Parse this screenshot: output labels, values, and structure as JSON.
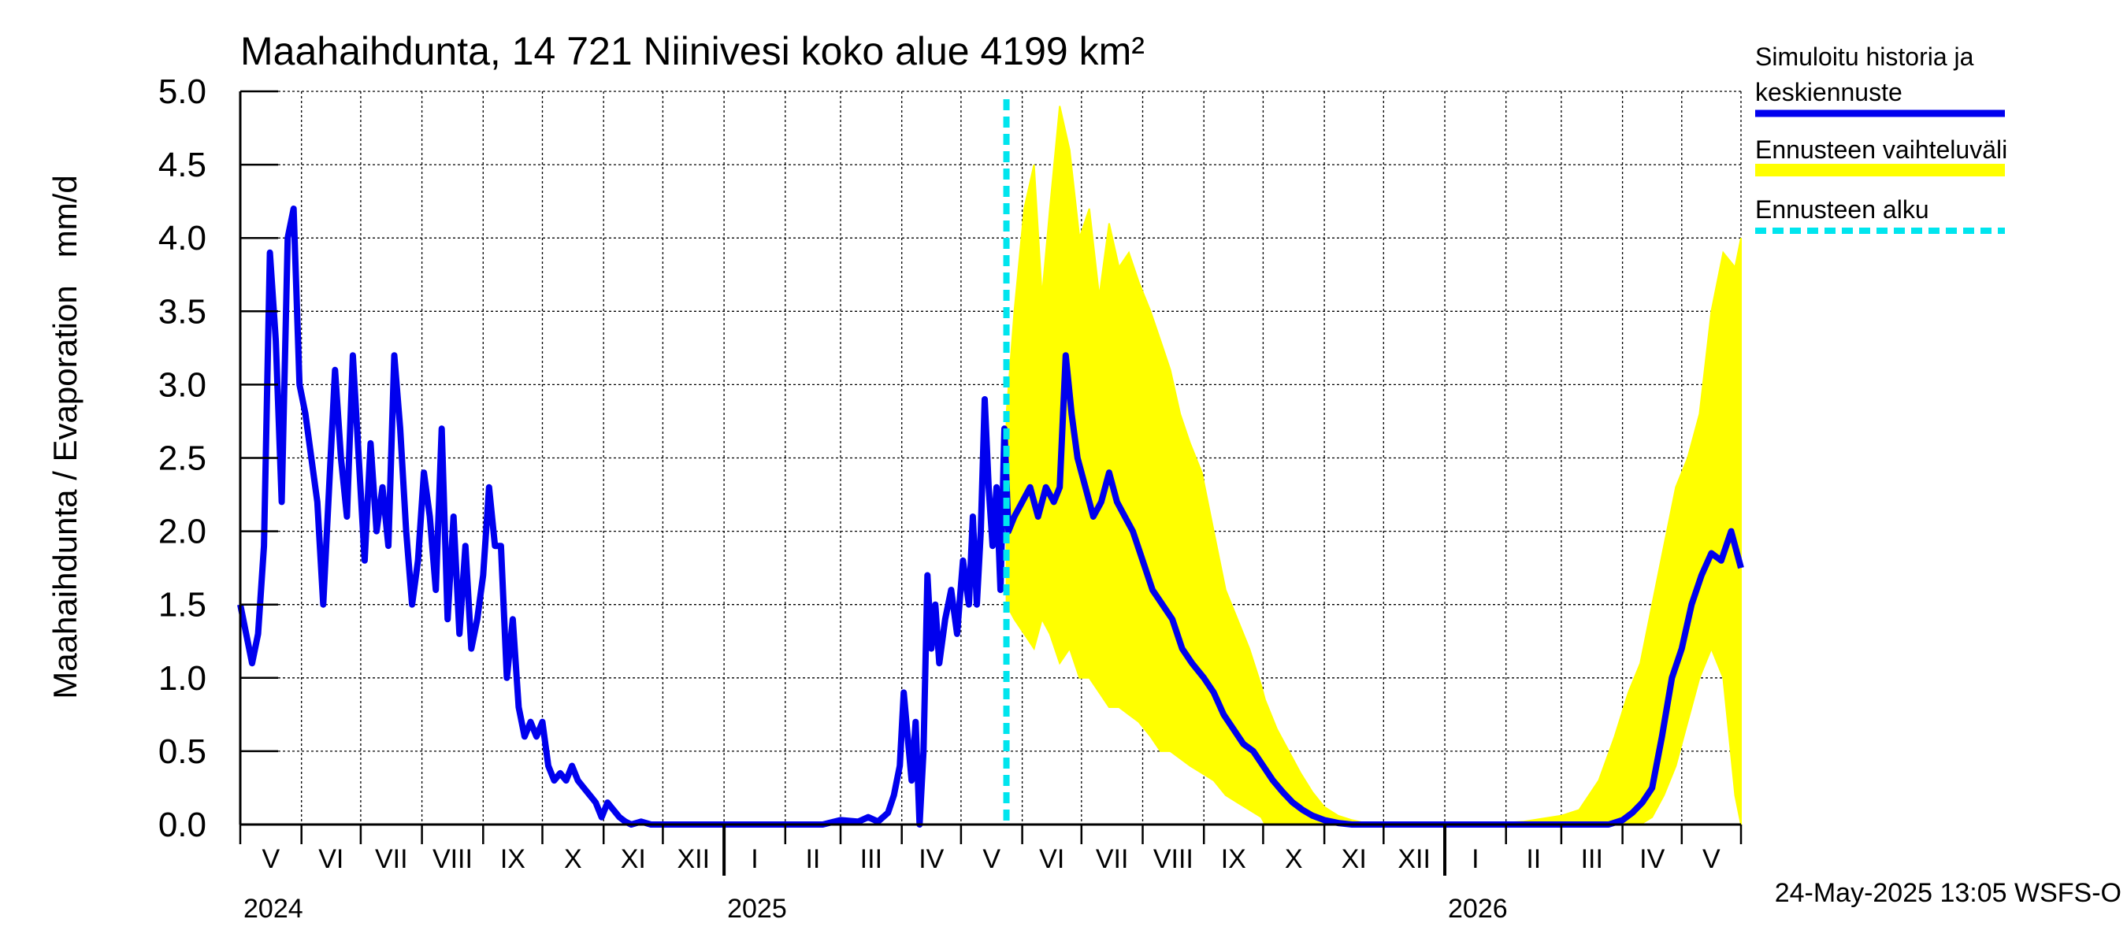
{
  "chart_data": {
    "type": "area",
    "title": "Maahaihdunta, 14 721 Niinivesi koko alue 4199 km²",
    "ylabel": "Maahaihdunta / Evaporation   mm/d",
    "ylim": [
      0.0,
      5.0
    ],
    "yticks": [
      "0.0",
      "0.5",
      "1.0",
      "1.5",
      "2.0",
      "2.5",
      "3.0",
      "3.5",
      "4.0",
      "4.5",
      "5.0"
    ],
    "grid": true,
    "legend_position": "right",
    "x_range": [
      "2024-05-01",
      "2026-05-31"
    ],
    "month_labels": [
      "V",
      "VI",
      "VII",
      "VIII",
      "IX",
      "X",
      "XI",
      "XII",
      "I",
      "II",
      "III",
      "IV",
      "V",
      "VI",
      "VII",
      "VIII",
      "IX",
      "X",
      "XI",
      "XII",
      "I",
      "II",
      "III",
      "IV",
      "V"
    ],
    "year_labels": [
      {
        "label": "2024",
        "date": "2024-05-01"
      },
      {
        "label": "2025",
        "date": "2025-01-01"
      },
      {
        "label": "2026",
        "date": "2026-01-01"
      }
    ],
    "forecast_start": "2025-05-24",
    "footer": "24-May-2025 13:05 WSFS-O",
    "legend": [
      {
        "label_line1": "Simuloitu historia ja",
        "label_line2": "keskiennuste",
        "color": "#0000ee",
        "style": "solid"
      },
      {
        "label_line1": "Ennusteen vaihteluväli",
        "label_line2": "",
        "color": "#ffff00",
        "style": "band"
      },
      {
        "label_line1": "Ennusteen alku",
        "label_line2": "",
        "color": "#00e5ee",
        "style": "dashed"
      }
    ],
    "series": [
      {
        "name": "Simuloitu historia ja keskiennuste",
        "color": "#0000ee",
        "points": [
          [
            "2024-05-01",
            1.5
          ],
          [
            "2024-05-04",
            1.3
          ],
          [
            "2024-05-07",
            1.1
          ],
          [
            "2024-05-10",
            1.3
          ],
          [
            "2024-05-13",
            1.9
          ],
          [
            "2024-05-16",
            3.9
          ],
          [
            "2024-05-19",
            3.3
          ],
          [
            "2024-05-22",
            2.2
          ],
          [
            "2024-05-25",
            4.0
          ],
          [
            "2024-05-28",
            4.2
          ],
          [
            "2024-05-31",
            3.0
          ],
          [
            "2024-06-03",
            2.8
          ],
          [
            "2024-06-06",
            2.5
          ],
          [
            "2024-06-09",
            2.2
          ],
          [
            "2024-06-12",
            1.5
          ],
          [
            "2024-06-15",
            2.3
          ],
          [
            "2024-06-18",
            3.1
          ],
          [
            "2024-06-21",
            2.5
          ],
          [
            "2024-06-24",
            2.1
          ],
          [
            "2024-06-27",
            3.2
          ],
          [
            "2024-06-30",
            2.5
          ],
          [
            "2024-07-03",
            1.8
          ],
          [
            "2024-07-06",
            2.6
          ],
          [
            "2024-07-09",
            2.0
          ],
          [
            "2024-07-12",
            2.3
          ],
          [
            "2024-07-15",
            1.9
          ],
          [
            "2024-07-18",
            3.2
          ],
          [
            "2024-07-21",
            2.7
          ],
          [
            "2024-07-24",
            2.0
          ],
          [
            "2024-07-27",
            1.5
          ],
          [
            "2024-07-30",
            1.8
          ],
          [
            "2024-08-02",
            2.4
          ],
          [
            "2024-08-05",
            2.1
          ],
          [
            "2024-08-08",
            1.6
          ],
          [
            "2024-08-11",
            2.7
          ],
          [
            "2024-08-14",
            1.4
          ],
          [
            "2024-08-17",
            2.1
          ],
          [
            "2024-08-20",
            1.3
          ],
          [
            "2024-08-23",
            1.9
          ],
          [
            "2024-08-26",
            1.2
          ],
          [
            "2024-08-29",
            1.4
          ],
          [
            "2024-09-01",
            1.7
          ],
          [
            "2024-09-04",
            2.3
          ],
          [
            "2024-09-07",
            1.9
          ],
          [
            "2024-09-10",
            1.9
          ],
          [
            "2024-09-13",
            1.0
          ],
          [
            "2024-09-16",
            1.4
          ],
          [
            "2024-09-19",
            0.8
          ],
          [
            "2024-09-22",
            0.6
          ],
          [
            "2024-09-25",
            0.7
          ],
          [
            "2024-09-28",
            0.6
          ],
          [
            "2024-10-01",
            0.7
          ],
          [
            "2024-10-04",
            0.4
          ],
          [
            "2024-10-07",
            0.3
          ],
          [
            "2024-10-10",
            0.35
          ],
          [
            "2024-10-13",
            0.3
          ],
          [
            "2024-10-16",
            0.4
          ],
          [
            "2024-10-19",
            0.3
          ],
          [
            "2024-10-22",
            0.25
          ],
          [
            "2024-10-25",
            0.2
          ],
          [
            "2024-10-28",
            0.15
          ],
          [
            "2024-10-31",
            0.05
          ],
          [
            "2024-11-03",
            0.15
          ],
          [
            "2024-11-06",
            0.1
          ],
          [
            "2024-11-09",
            0.05
          ],
          [
            "2024-11-12",
            0.02
          ],
          [
            "2024-11-15",
            0.0
          ],
          [
            "2024-11-20",
            0.02
          ],
          [
            "2024-11-25",
            0.0
          ],
          [
            "2024-12-05",
            0.0
          ],
          [
            "2024-12-20",
            0.0
          ],
          [
            "2025-01-05",
            0.0
          ],
          [
            "2025-01-20",
            0.0
          ],
          [
            "2025-02-05",
            0.0
          ],
          [
            "2025-02-20",
            0.0
          ],
          [
            "2025-03-01",
            0.03
          ],
          [
            "2025-03-10",
            0.02
          ],
          [
            "2025-03-15",
            0.05
          ],
          [
            "2025-03-20",
            0.02
          ],
          [
            "2025-03-25",
            0.08
          ],
          [
            "2025-03-28",
            0.2
          ],
          [
            "2025-03-31",
            0.4
          ],
          [
            "2025-04-02",
            0.9
          ],
          [
            "2025-04-04",
            0.6
          ],
          [
            "2025-04-06",
            0.3
          ],
          [
            "2025-04-08",
            0.7
          ],
          [
            "2025-04-10",
            0.0
          ],
          [
            "2025-04-12",
            0.5
          ],
          [
            "2025-04-14",
            1.7
          ],
          [
            "2025-04-16",
            1.2
          ],
          [
            "2025-04-18",
            1.5
          ],
          [
            "2025-04-20",
            1.1
          ],
          [
            "2025-04-23",
            1.4
          ],
          [
            "2025-04-26",
            1.6
          ],
          [
            "2025-04-29",
            1.3
          ],
          [
            "2025-05-02",
            1.8
          ],
          [
            "2025-05-05",
            1.5
          ],
          [
            "2025-05-07",
            2.1
          ],
          [
            "2025-05-09",
            1.5
          ],
          [
            "2025-05-11",
            2.0
          ],
          [
            "2025-05-13",
            2.9
          ],
          [
            "2025-05-15",
            2.3
          ],
          [
            "2025-05-17",
            1.9
          ],
          [
            "2025-05-19",
            2.3
          ],
          [
            "2025-05-21",
            1.6
          ],
          [
            "2025-05-23",
            2.7
          ],
          [
            "2025-05-25",
            2.0
          ],
          [
            "2025-05-28",
            2.1
          ],
          [
            "2025-06-01",
            2.2
          ],
          [
            "2025-06-05",
            2.3
          ],
          [
            "2025-06-09",
            2.1
          ],
          [
            "2025-06-13",
            2.3
          ],
          [
            "2025-06-17",
            2.2
          ],
          [
            "2025-06-20",
            2.3
          ],
          [
            "2025-06-23",
            3.2
          ],
          [
            "2025-06-26",
            2.8
          ],
          [
            "2025-06-29",
            2.5
          ],
          [
            "2025-07-03",
            2.3
          ],
          [
            "2025-07-07",
            2.1
          ],
          [
            "2025-07-11",
            2.2
          ],
          [
            "2025-07-15",
            2.4
          ],
          [
            "2025-07-19",
            2.2
          ],
          [
            "2025-07-23",
            2.1
          ],
          [
            "2025-07-27",
            2.0
          ],
          [
            "2025-08-01",
            1.8
          ],
          [
            "2025-08-06",
            1.6
          ],
          [
            "2025-08-11",
            1.5
          ],
          [
            "2025-08-16",
            1.4
          ],
          [
            "2025-08-21",
            1.2
          ],
          [
            "2025-08-26",
            1.1
          ],
          [
            "2025-09-01",
            1.0
          ],
          [
            "2025-09-06",
            0.9
          ],
          [
            "2025-09-11",
            0.75
          ],
          [
            "2025-09-16",
            0.65
          ],
          [
            "2025-09-21",
            0.55
          ],
          [
            "2025-09-26",
            0.5
          ],
          [
            "2025-10-01",
            0.4
          ],
          [
            "2025-10-06",
            0.3
          ],
          [
            "2025-10-11",
            0.22
          ],
          [
            "2025-10-16",
            0.15
          ],
          [
            "2025-10-21",
            0.1
          ],
          [
            "2025-10-26",
            0.06
          ],
          [
            "2025-11-01",
            0.03
          ],
          [
            "2025-11-08",
            0.01
          ],
          [
            "2025-11-15",
            0.0
          ],
          [
            "2025-12-15",
            0.0
          ],
          [
            "2026-01-15",
            0.0
          ],
          [
            "2026-02-15",
            0.0
          ],
          [
            "2026-03-10",
            0.0
          ],
          [
            "2026-03-25",
            0.0
          ],
          [
            "2026-04-01",
            0.03
          ],
          [
            "2026-04-06",
            0.08
          ],
          [
            "2026-04-11",
            0.15
          ],
          [
            "2026-04-16",
            0.25
          ],
          [
            "2026-04-21",
            0.6
          ],
          [
            "2026-04-26",
            1.0
          ],
          [
            "2026-05-01",
            1.2
          ],
          [
            "2026-05-06",
            1.5
          ],
          [
            "2026-05-11",
            1.7
          ],
          [
            "2026-05-16",
            1.85
          ],
          [
            "2026-05-21",
            1.8
          ],
          [
            "2026-05-26",
            2.0
          ],
          [
            "2026-05-31",
            1.75
          ]
        ]
      },
      {
        "name": "Ennusteen vaihteluväli",
        "color": "#ffff00",
        "band": [
          [
            "2025-05-24",
            1.5,
            2.8
          ],
          [
            "2025-05-28",
            1.4,
            3.5
          ],
          [
            "2025-06-02",
            1.3,
            4.2
          ],
          [
            "2025-06-07",
            1.2,
            4.5
          ],
          [
            "2025-06-11",
            1.4,
            3.6
          ],
          [
            "2025-06-15",
            1.3,
            4.2
          ],
          [
            "2025-06-20",
            1.1,
            4.9
          ],
          [
            "2025-06-25",
            1.2,
            4.6
          ],
          [
            "2025-06-30",
            1.0,
            4.0
          ],
          [
            "2025-07-05",
            1.0,
            4.2
          ],
          [
            "2025-07-10",
            0.9,
            3.6
          ],
          [
            "2025-07-15",
            0.8,
            4.1
          ],
          [
            "2025-07-20",
            0.8,
            3.8
          ],
          [
            "2025-07-25",
            0.75,
            3.9
          ],
          [
            "2025-07-30",
            0.7,
            3.7
          ],
          [
            "2025-08-05",
            0.6,
            3.5
          ],
          [
            "2025-08-10",
            0.5,
            3.3
          ],
          [
            "2025-08-15",
            0.5,
            3.1
          ],
          [
            "2025-08-20",
            0.45,
            2.8
          ],
          [
            "2025-08-25",
            0.4,
            2.6
          ],
          [
            "2025-08-31",
            0.35,
            2.4
          ],
          [
            "2025-09-06",
            0.3,
            2.0
          ],
          [
            "2025-09-12",
            0.2,
            1.6
          ],
          [
            "2025-09-18",
            0.15,
            1.4
          ],
          [
            "2025-09-24",
            0.1,
            1.2
          ],
          [
            "2025-09-30",
            0.05,
            0.95
          ],
          [
            "2025-10-02",
            0.0,
            0.85
          ],
          [
            "2025-10-08",
            0.0,
            0.65
          ],
          [
            "2025-10-14",
            0.0,
            0.5
          ],
          [
            "2025-10-20",
            0.0,
            0.35
          ],
          [
            "2025-10-26",
            0.0,
            0.22
          ],
          [
            "2025-11-01",
            0.0,
            0.12
          ],
          [
            "2025-11-08",
            0.0,
            0.06
          ],
          [
            "2025-11-15",
            0.0,
            0.03
          ],
          [
            "2025-11-25",
            0.0,
            0.0
          ],
          [
            "2026-01-15",
            0.0,
            0.0
          ],
          [
            "2026-02-10",
            0.0,
            0.02
          ],
          [
            "2026-03-01",
            0.0,
            0.06
          ],
          [
            "2026-03-10",
            0.0,
            0.1
          ],
          [
            "2026-03-20",
            0.0,
            0.3
          ],
          [
            "2026-03-28",
            0.0,
            0.6
          ],
          [
            "2026-04-04",
            0.0,
            0.9
          ],
          [
            "2026-04-10",
            0.0,
            1.1
          ],
          [
            "2026-04-16",
            0.05,
            1.5
          ],
          [
            "2026-04-22",
            0.2,
            1.9
          ],
          [
            "2026-04-28",
            0.4,
            2.3
          ],
          [
            "2026-05-04",
            0.7,
            2.5
          ],
          [
            "2026-05-10",
            1.0,
            2.8
          ],
          [
            "2026-05-16",
            1.2,
            3.5
          ],
          [
            "2026-05-22",
            1.0,
            3.9
          ],
          [
            "2026-05-28",
            0.2,
            3.8
          ],
          [
            "2026-05-31",
            0.0,
            4.0
          ]
        ]
      }
    ]
  }
}
